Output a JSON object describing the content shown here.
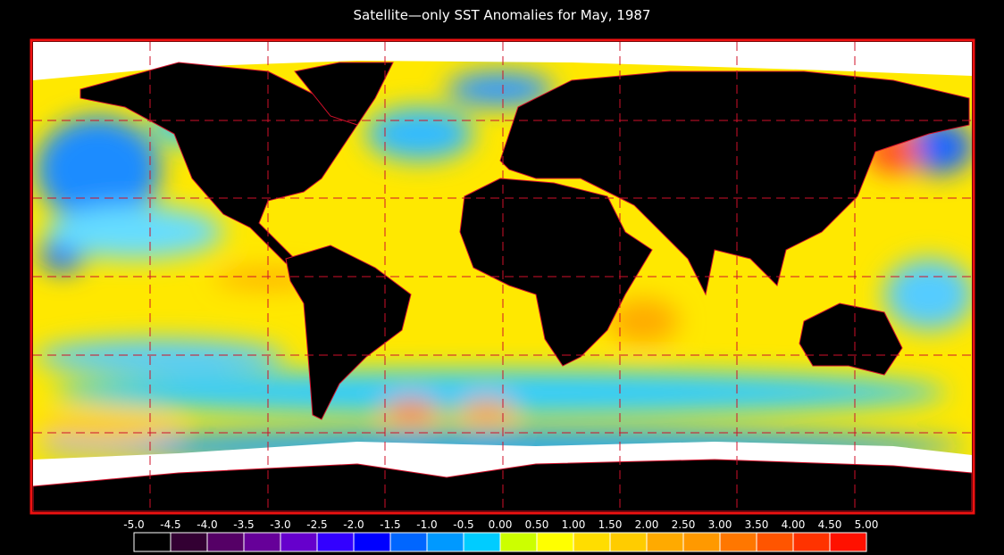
{
  "title": "Satellite—only SST Anomalies for May, 1987",
  "colorbar": {
    "ticks": [
      {
        "value": -5,
        "label": "-5.0"
      },
      {
        "value": -4.5,
        "label": "-4.5"
      },
      {
        "value": -4,
        "label": "-4.0"
      },
      {
        "value": -3.5,
        "label": "-3.5"
      },
      {
        "value": -3,
        "label": "-3.0"
      },
      {
        "value": -2.5,
        "label": "-2.5"
      },
      {
        "value": -2,
        "label": "-2.0"
      },
      {
        "value": -1.5,
        "label": "-1.5"
      },
      {
        "value": -1,
        "label": "-1.0"
      },
      {
        "value": -0.5,
        "label": "-0.5"
      },
      {
        "value": 0,
        "label": "0.00"
      },
      {
        "value": 0.5,
        "label": "0.50"
      },
      {
        "value": 1,
        "label": "1.00"
      },
      {
        "value": 1.5,
        "label": "1.50"
      },
      {
        "value": 2,
        "label": "2.00"
      },
      {
        "value": 2.5,
        "label": "2.50"
      },
      {
        "value": 3,
        "label": "3.00"
      },
      {
        "value": 3.5,
        "label": "3.50"
      },
      {
        "value": 4,
        "label": "4.00"
      },
      {
        "value": 4.5,
        "label": "4.50"
      },
      {
        "value": 5,
        "label": "5.00"
      }
    ],
    "colors": [
      "#000000",
      "#330033",
      "#550066",
      "#660099",
      "#6600cc",
      "#3300ff",
      "#0000ff",
      "#0066ff",
      "#0099ff",
      "#00ccff",
      "#ccff00",
      "#ffff00",
      "#ffdd00",
      "#ffcc00",
      "#ffaa00",
      "#ff9900",
      "#ff7700",
      "#ff5500",
      "#ff3300",
      "#ff1100"
    ]
  }
}
